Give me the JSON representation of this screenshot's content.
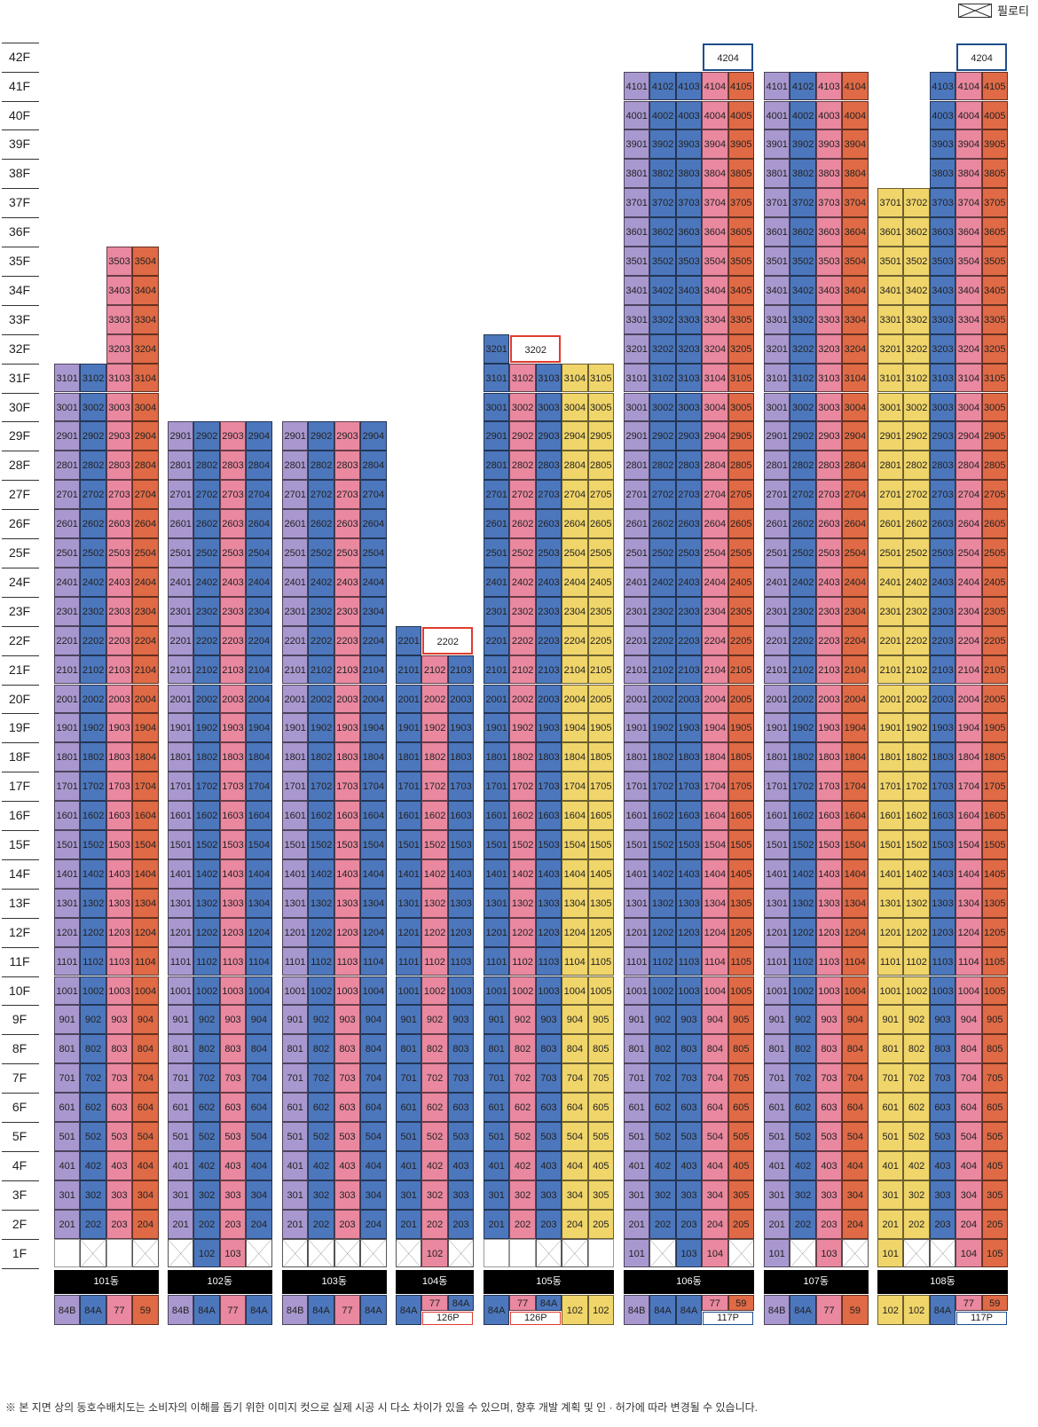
{
  "legend": {
    "label": "필로티"
  },
  "floors": [
    "1F",
    "2F",
    "3F",
    "4F",
    "5F",
    "6F",
    "7F",
    "8F",
    "9F",
    "10F",
    "11F",
    "12F",
    "13F",
    "14F",
    "15F",
    "16F",
    "17F",
    "18F",
    "19F",
    "20F",
    "21F",
    "22F",
    "23F",
    "24F",
    "25F",
    "26F",
    "27F",
    "28F",
    "29F",
    "30F",
    "31F",
    "32F",
    "33F",
    "34F",
    "35F",
    "36F",
    "37F",
    "38F",
    "39F",
    "40F",
    "41F",
    "42F"
  ],
  "colors": {
    "84B": "#a998cf",
    "84A": "#4c77bd",
    "77": "#e9889f",
    "59": "#df6a45",
    "102": "#f0d56a",
    "special_red": "#e03c2e",
    "special_blue": "#1f4e8c",
    "pilotis": "#ffffff"
  },
  "buildings": [
    {
      "name": "101동",
      "types": [
        "84B",
        "84A",
        "77",
        "59"
      ],
      "colTops": [
        31,
        31,
        35,
        35
      ],
      "ground": [
        "plain",
        "pil",
        "plain",
        "pil"
      ],
      "specials": [],
      "typeLabels": [
        {
          "cols": [
            0
          ],
          "text": "84B"
        },
        {
          "cols": [
            1
          ],
          "text": "84A"
        },
        {
          "cols": [
            2
          ],
          "text": "77"
        },
        {
          "cols": [
            3
          ],
          "text": "59"
        }
      ]
    },
    {
      "name": "102동",
      "types": [
        "84B",
        "84A",
        "77",
        "84A"
      ],
      "colTops": [
        29,
        29,
        29,
        29
      ],
      "ground": [
        "pil",
        "u",
        "u",
        "pil"
      ],
      "specials": [],
      "typeLabels": [
        {
          "cols": [
            0
          ],
          "text": "84B"
        },
        {
          "cols": [
            1
          ],
          "text": "84A"
        },
        {
          "cols": [
            2
          ],
          "text": "77"
        },
        {
          "cols": [
            3
          ],
          "text": "84A"
        }
      ]
    },
    {
      "name": "103동",
      "types": [
        "84B",
        "84A",
        "77",
        "84A"
      ],
      "colTops": [
        29,
        29,
        29,
        29
      ],
      "ground": [
        "pil",
        "pil",
        "pil",
        "pil"
      ],
      "specials": [],
      "typeLabels": [
        {
          "cols": [
            0
          ],
          "text": "84B"
        },
        {
          "cols": [
            1
          ],
          "text": "84A"
        },
        {
          "cols": [
            2
          ],
          "text": "77"
        },
        {
          "cols": [
            3
          ],
          "text": "84A"
        }
      ]
    },
    {
      "name": "104동",
      "types": [
        "84A",
        "77",
        "84A"
      ],
      "colTops": [
        22,
        21,
        21
      ],
      "ground": [
        "pil",
        "u",
        "pil"
      ],
      "specials": [
        {
          "floor": 22,
          "cols": [
            1,
            2
          ],
          "text": "2202",
          "style": "red"
        }
      ],
      "typeLabels": [
        {
          "cols": [
            0
          ],
          "text": "84A"
        },
        {
          "cols": [
            1
          ],
          "text": "77"
        },
        {
          "cols": [
            2
          ],
          "text": "84A"
        }
      ],
      "penthouse": {
        "cols": [
          1,
          2
        ],
        "text": "126P"
      }
    },
    {
      "name": "105동",
      "types": [
        "84A",
        "77",
        "84A",
        "102",
        "102"
      ],
      "colTops": [
        32,
        31,
        31,
        31,
        31
      ],
      "ground": [
        "plain",
        "plain",
        "pil",
        "pil",
        "plain"
      ],
      "specials": [
        {
          "floor": 32,
          "cols": [
            1,
            2
          ],
          "text": "3202",
          "style": "red"
        }
      ],
      "typeLabels": [
        {
          "cols": [
            0
          ],
          "text": "84A"
        },
        {
          "cols": [
            1
          ],
          "text": "77"
        },
        {
          "cols": [
            2
          ],
          "text": "84A"
        },
        {
          "cols": [
            3
          ],
          "text": "102"
        },
        {
          "cols": [
            4
          ],
          "text": "102"
        }
      ],
      "penthouse": {
        "cols": [
          1,
          2
        ],
        "text": "126P"
      }
    },
    {
      "name": "106동",
      "types": [
        "84B",
        "84A",
        "84A",
        "77",
        "59"
      ],
      "colTops": [
        41,
        41,
        41,
        41,
        41
      ],
      "ground": [
        "u",
        "pil",
        "u",
        "u",
        "pil"
      ],
      "specials": [
        {
          "floor": 42,
          "cols": [
            3,
            4
          ],
          "text": "4204",
          "style": "blue"
        }
      ],
      "typeLabels": [
        {
          "cols": [
            0
          ],
          "text": "84B"
        },
        {
          "cols": [
            1
          ],
          "text": "84A"
        },
        {
          "cols": [
            2
          ],
          "text": "84A"
        },
        {
          "cols": [
            3
          ],
          "text": "77"
        },
        {
          "cols": [
            4
          ],
          "text": "59"
        }
      ],
      "penthouse": {
        "cols": [
          3,
          4
        ],
        "text": "117P"
      }
    },
    {
      "name": "107동",
      "types": [
        "84B",
        "84A",
        "77",
        "59"
      ],
      "colTops": [
        41,
        41,
        41,
        41
      ],
      "ground": [
        "u",
        "pil",
        "u",
        "pil"
      ],
      "specials": [],
      "typeLabels": [
        {
          "cols": [
            0
          ],
          "text": "84B"
        },
        {
          "cols": [
            1
          ],
          "text": "84A"
        },
        {
          "cols": [
            2
          ],
          "text": "77"
        },
        {
          "cols": [
            3
          ],
          "text": "59"
        }
      ]
    },
    {
      "name": "108동",
      "types": [
        "102",
        "102",
        "84A",
        "77",
        "59"
      ],
      "colTops": [
        37,
        37,
        41,
        41,
        41
      ],
      "ground": [
        "u",
        "pil",
        "pil",
        "u",
        "u"
      ],
      "specials": [
        {
          "floor": 42,
          "cols": [
            3,
            4
          ],
          "text": "4204",
          "style": "blue"
        }
      ],
      "typeLabels": [
        {
          "cols": [
            0
          ],
          "text": "102"
        },
        {
          "cols": [
            1
          ],
          "text": "102"
        },
        {
          "cols": [
            2
          ],
          "text": "84A"
        },
        {
          "cols": [
            3
          ],
          "text": "77"
        },
        {
          "cols": [
            4
          ],
          "text": "59"
        }
      ],
      "penthouse": {
        "cols": [
          3,
          4
        ],
        "text": "117P"
      }
    }
  ],
  "note": "※ 본 지면 상의 동호수배치도는 소비자의 이해를 돕기 위한 이미지 컷으로 실제 시공 시 다소 차이가 있을 수 있으며, 향후 개발 계획 및 인 · 허가에 따라 변경될 수 있습니다."
}
